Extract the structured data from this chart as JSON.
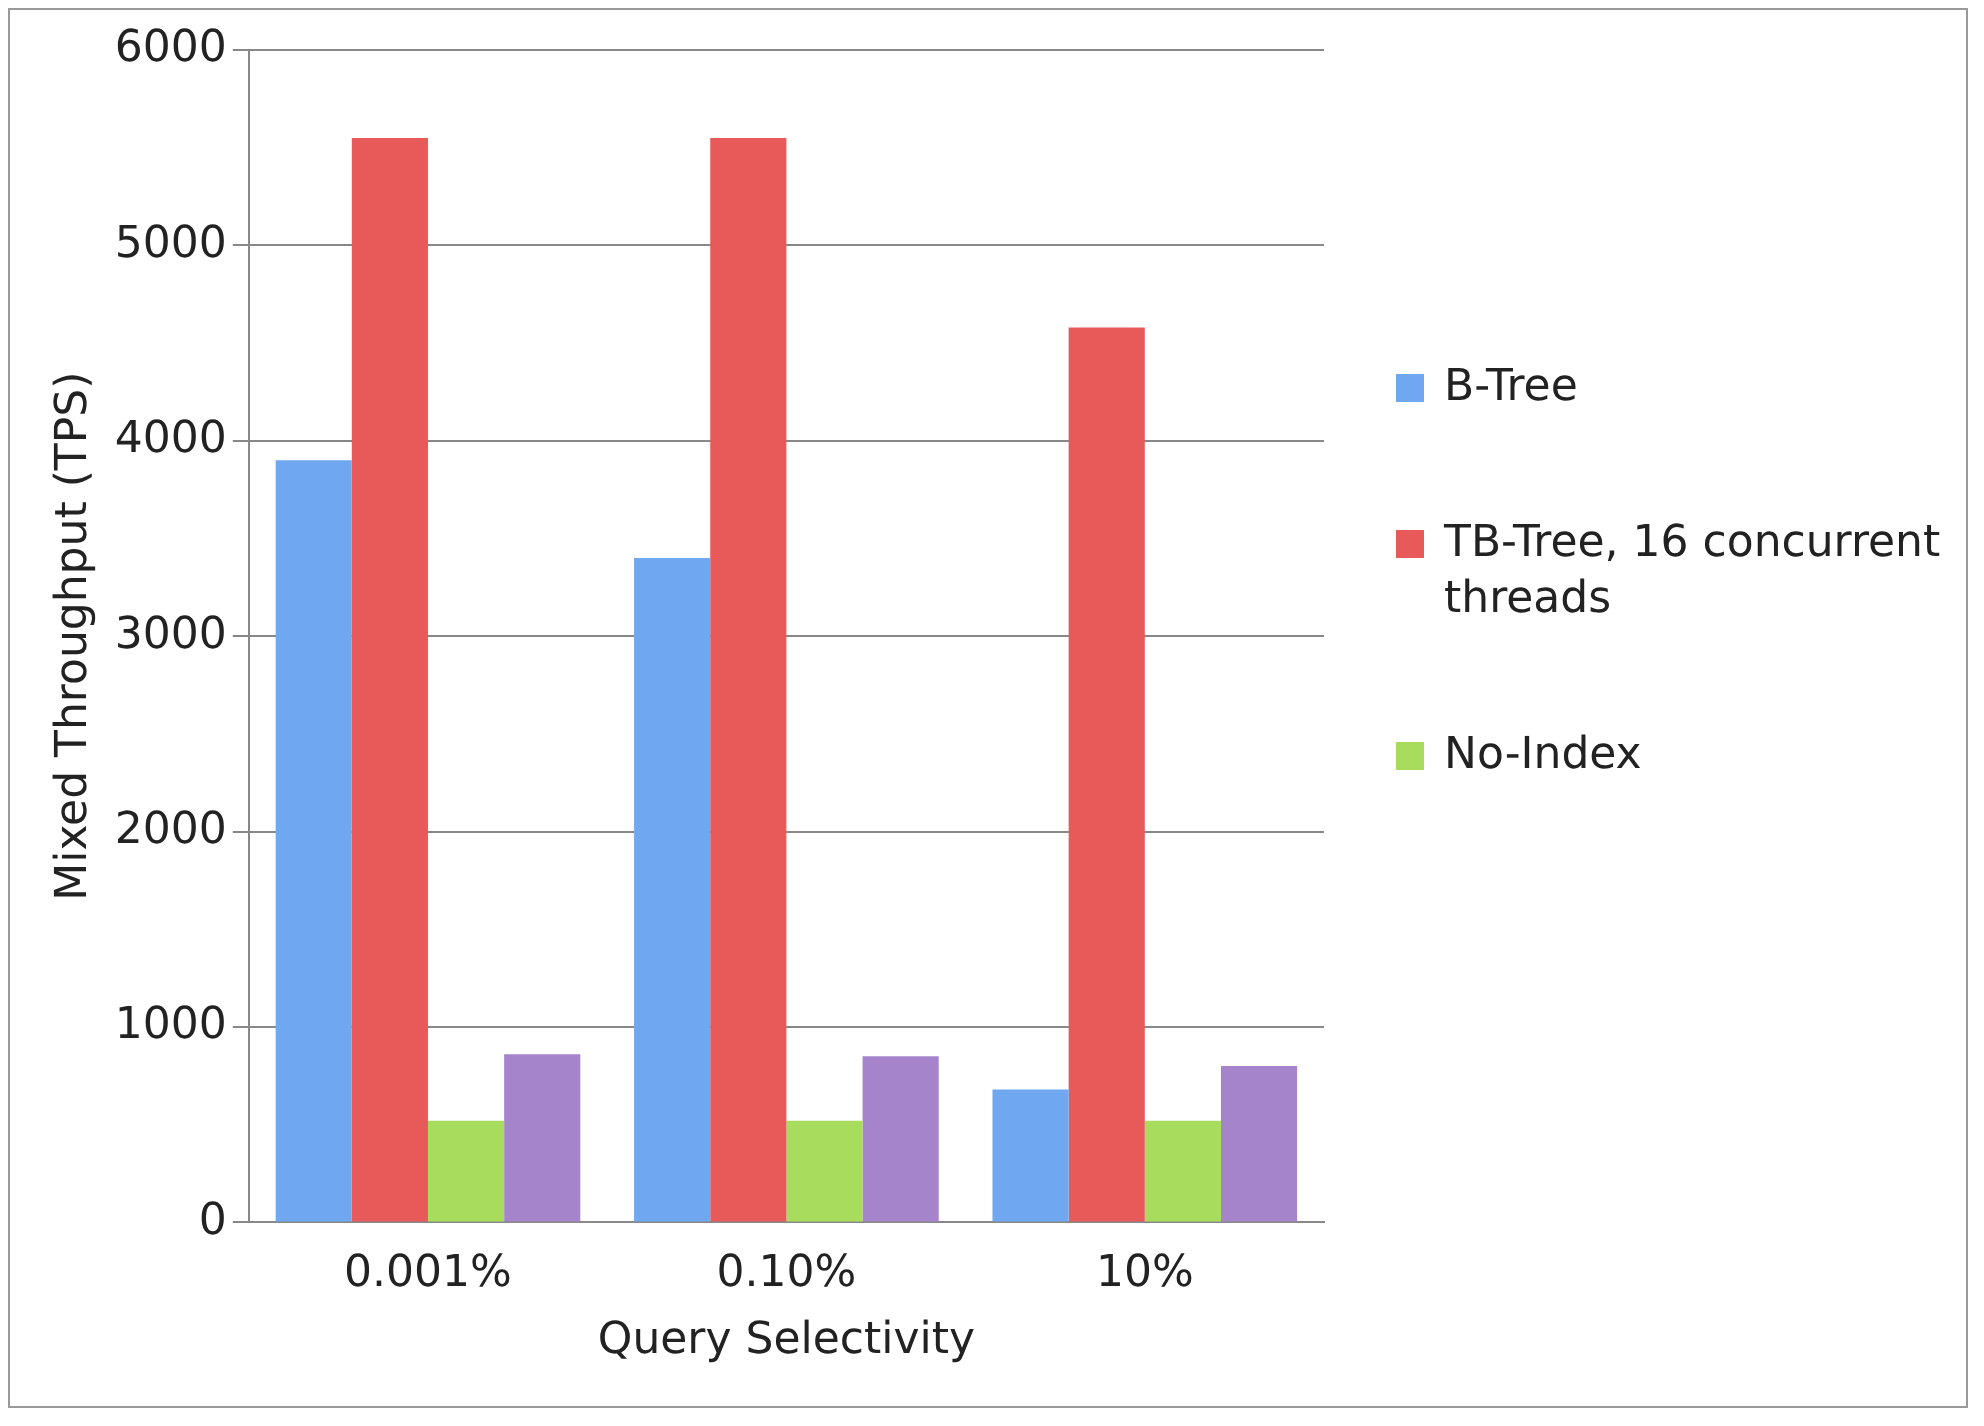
{
  "chart_data": {
    "type": "bar",
    "xlabel": "Query Selectivity",
    "ylabel": "Mixed Throughput (TPS)",
    "categories": [
      "0.001%",
      "0.10%",
      "10%"
    ],
    "series": [
      {
        "name": "B-Tree",
        "color": "#6fa8f0",
        "values": [
          3900,
          3400,
          680
        ]
      },
      {
        "name": "TB-Tree, 16 concurrent threads",
        "color": "#e85a5a",
        "values": [
          5550,
          5550,
          4580
        ]
      },
      {
        "name": "No-Index",
        "color": "#a8dc5c",
        "values": [
          520,
          520,
          520
        ]
      },
      {
        "color": "#a584cc",
        "values": [
          860,
          850,
          800
        ]
      }
    ],
    "ylim": [
      0,
      6000
    ],
    "yticks": [
      0,
      1000,
      2000,
      3000,
      4000,
      5000,
      6000
    ],
    "grid": "y",
    "legend": "right"
  }
}
